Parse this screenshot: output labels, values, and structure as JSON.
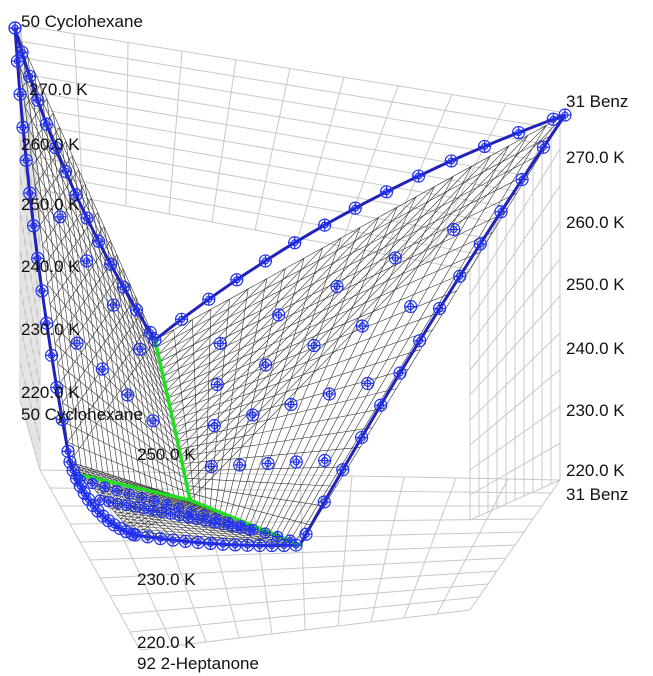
{
  "chart_data": {
    "type": "scatter",
    "components": {
      "a": "50 Cyclohexane",
      "b": "31 Benz",
      "c": "92 2-Heptanone"
    },
    "axes": {
      "a": {
        "label": "50 Cyclohexane",
        "ticks": [
          "270.0 K",
          "260.0 K",
          "250.0 K",
          "240.0 K",
          "230.0 K",
          "220.0 K"
        ]
      },
      "b": {
        "label": "31 Benz",
        "ticks": [
          "270.0 K",
          "260.0 K",
          "250.0 K",
          "240.0 K",
          "230.0 K",
          "220.0 K"
        ]
      },
      "c": {
        "label": "92 2-Heptanone",
        "ticks": [
          "250.0 K",
          "230.0 K",
          "220.0 K"
        ]
      },
      "base_label": "50 Cyclohexane"
    },
    "colors": {
      "surface": "#333333",
      "edges": "#2222bb",
      "markers": "#2233ee",
      "eutectic": "#22dd22",
      "grid": "#c8c8c8"
    }
  }
}
